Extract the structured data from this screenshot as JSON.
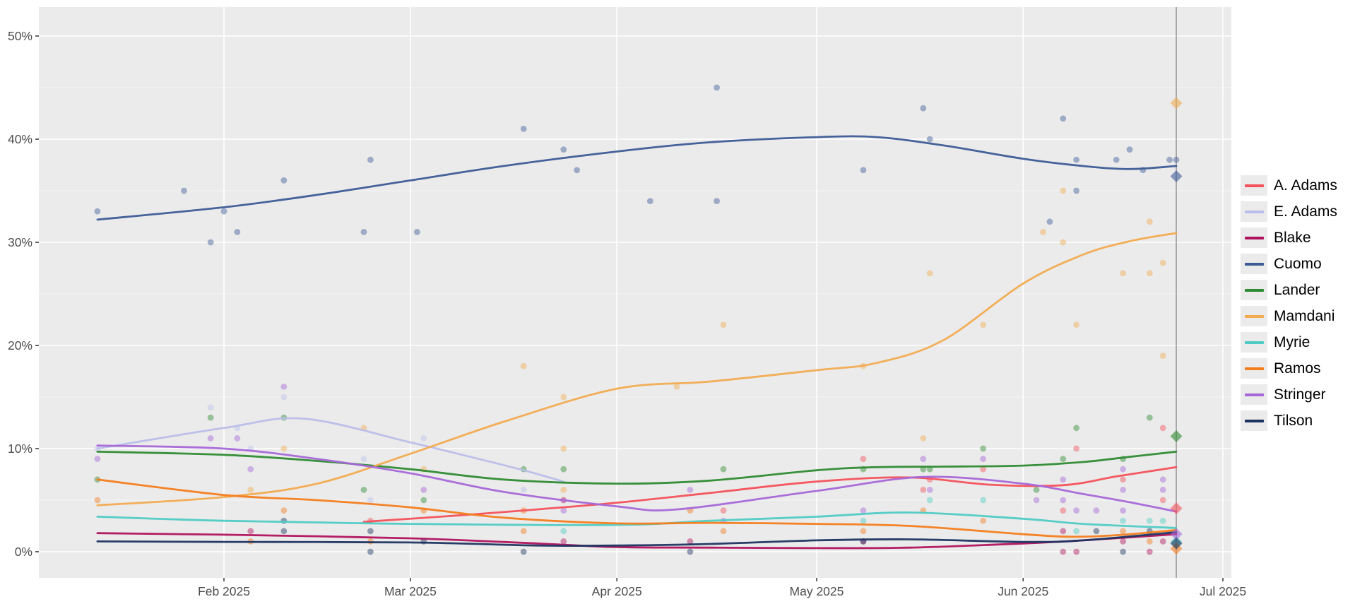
{
  "chart_data": {
    "type": "scatter",
    "subtype": "polls-with-loess-trend-lines",
    "title": "",
    "xlabel": "",
    "ylabel": "",
    "x_axis": {
      "unit": "date",
      "tick_labels": [
        "Feb 2025",
        "Mar 2025",
        "Apr 2025",
        "May 2025",
        "Jun 2025",
        "Jul 2025"
      ],
      "tick_days_of_year_2025": [
        32,
        60,
        91,
        121,
        152,
        182
      ],
      "visible_range_days": [
        4,
        183
      ]
    },
    "y_axis": {
      "unit": "percent",
      "tick_labels": [
        "0%",
        "10%",
        "20%",
        "30%",
        "40%",
        "50%"
      ],
      "tick_values": [
        0,
        10,
        20,
        30,
        40,
        50
      ],
      "minor_gridlines": [
        5,
        15,
        25,
        35,
        45
      ],
      "visible_range": [
        -2.5,
        52.8
      ]
    },
    "grid": "on",
    "panel_background": "#ebebeb",
    "gridline_major_color": "#ffffff",
    "gridline_minor_color": "rgba(255,255,255,0.55)",
    "axis_text_color": "#4d4d4d",
    "election_day_line": {
      "day": 175,
      "date": "Jun 24 2025",
      "color": "#8f8f8f"
    },
    "legend_position": "right",
    "note": "days are day-of-year 2025; polls = faded dots; trend = smoothed line; result = diamond at election day",
    "candidates": [
      {
        "name": "A. Adams",
        "color": "#f4515a",
        "result_pct": 4.2,
        "trend": [
          [
            53,
            2.9
          ],
          [
            69,
            3.6
          ],
          [
            79,
            4.1
          ],
          [
            91,
            4.75
          ],
          [
            105,
            5.7
          ],
          [
            121,
            6.8
          ],
          [
            135,
            7.2
          ],
          [
            147,
            6.5
          ],
          [
            158,
            6.45
          ],
          [
            166,
            7.3
          ],
          [
            175,
            8.2
          ]
        ],
        "polls": [
          [
            54,
            3
          ],
          [
            107,
            4
          ],
          [
            128,
            9
          ],
          [
            137,
            6
          ],
          [
            138,
            7
          ],
          [
            146,
            8
          ],
          [
            158,
            4
          ],
          [
            160,
            10
          ],
          [
            167,
            7
          ],
          [
            173,
            12
          ],
          [
            173,
            5
          ]
        ]
      },
      {
        "name": "E. Adams",
        "color": "#bbbee9",
        "result_pct": null,
        "trend": [
          [
            13,
            10.0
          ],
          [
            32,
            12.0
          ],
          [
            44,
            12.9
          ],
          [
            60,
            10.6
          ],
          [
            69,
            9.2
          ],
          [
            77,
            7.9
          ],
          [
            83,
            6.8
          ]
        ],
        "polls": [
          [
            13,
            10
          ],
          [
            30,
            14
          ],
          [
            34,
            12
          ],
          [
            36,
            10
          ],
          [
            41,
            15
          ],
          [
            53,
            9
          ],
          [
            54,
            5
          ],
          [
            62,
            11
          ],
          [
            77,
            6
          ]
        ]
      },
      {
        "name": "Blake",
        "color": "#b0135e",
        "result_pct": null,
        "trend": [
          [
            13,
            1.8
          ],
          [
            32,
            1.65
          ],
          [
            60,
            1.3
          ],
          [
            79,
            0.8
          ],
          [
            91,
            0.45
          ],
          [
            105,
            0.4
          ],
          [
            121,
            0.35
          ],
          [
            135,
            0.4
          ],
          [
            152,
            0.8
          ],
          [
            161,
            1.1
          ],
          [
            175,
            1.7
          ]
        ],
        "polls": [
          [
            36,
            2
          ],
          [
            83,
            5
          ],
          [
            83,
            1
          ],
          [
            102,
            1
          ],
          [
            128,
            1
          ],
          [
            158,
            2
          ],
          [
            158,
            0
          ],
          [
            160,
            0
          ],
          [
            167,
            1
          ],
          [
            171,
            0
          ],
          [
            173,
            1
          ]
        ]
      },
      {
        "name": "Cuomo",
        "color": "#3d5b96",
        "result_pct": 36.4,
        "trend": [
          [
            13,
            32.2
          ],
          [
            32,
            33.4
          ],
          [
            46,
            34.6
          ],
          [
            60,
            36.0
          ],
          [
            74,
            37.4
          ],
          [
            91,
            38.8
          ],
          [
            105,
            39.7
          ],
          [
            121,
            40.2
          ],
          [
            130,
            40.2
          ],
          [
            140,
            39.4
          ],
          [
            152,
            38.1
          ],
          [
            161,
            37.4
          ],
          [
            168,
            37.1
          ],
          [
            175,
            37.4
          ]
        ],
        "polls": [
          [
            13,
            33
          ],
          [
            26,
            35
          ],
          [
            30,
            30
          ],
          [
            32,
            33
          ],
          [
            34,
            31
          ],
          [
            41,
            36
          ],
          [
            53,
            31
          ],
          [
            54,
            38
          ],
          [
            61,
            31
          ],
          [
            77,
            41
          ],
          [
            83,
            39
          ],
          [
            85,
            37
          ],
          [
            96,
            34
          ],
          [
            106,
            45
          ],
          [
            106,
            34
          ],
          [
            128,
            37
          ],
          [
            137,
            43
          ],
          [
            138,
            40
          ],
          [
            156,
            32
          ],
          [
            158,
            42
          ],
          [
            160,
            38
          ],
          [
            160,
            35
          ],
          [
            166,
            38
          ],
          [
            168,
            39
          ],
          [
            170,
            37
          ],
          [
            174,
            38
          ],
          [
            175,
            38
          ]
        ]
      },
      {
        "name": "Lander",
        "color": "#2e8b31",
        "result_pct": 11.2,
        "trend": [
          [
            13,
            9.7
          ],
          [
            32,
            9.4
          ],
          [
            46,
            8.8
          ],
          [
            60,
            8.0
          ],
          [
            74,
            7.0
          ],
          [
            91,
            6.6
          ],
          [
            105,
            6.9
          ],
          [
            121,
            7.9
          ],
          [
            130,
            8.2
          ],
          [
            140,
            8.25
          ],
          [
            152,
            8.35
          ],
          [
            161,
            8.7
          ],
          [
            168,
            9.2
          ],
          [
            175,
            9.7
          ]
        ],
        "polls": [
          [
            13,
            7
          ],
          [
            30,
            13
          ],
          [
            41,
            13
          ],
          [
            53,
            6
          ],
          [
            62,
            5
          ],
          [
            77,
            8
          ],
          [
            83,
            8
          ],
          [
            107,
            8
          ],
          [
            128,
            8
          ],
          [
            137,
            8
          ],
          [
            138,
            8
          ],
          [
            146,
            10
          ],
          [
            154,
            6
          ],
          [
            158,
            9
          ],
          [
            160,
            12
          ],
          [
            167,
            9
          ],
          [
            171,
            13
          ]
        ]
      },
      {
        "name": "Mamdani",
        "color": "#f2ab50",
        "result_pct": 43.5,
        "trend": [
          [
            13,
            4.5
          ],
          [
            32,
            5.3
          ],
          [
            46,
            6.6
          ],
          [
            60,
            9.5
          ],
          [
            74,
            12.6
          ],
          [
            91,
            15.8
          ],
          [
            105,
            16.5
          ],
          [
            121,
            17.6
          ],
          [
            130,
            18.3
          ],
          [
            140,
            20.5
          ],
          [
            152,
            26.0
          ],
          [
            161,
            28.8
          ],
          [
            168,
            30.1
          ],
          [
            175,
            30.9
          ]
        ],
        "polls": [
          [
            36,
            6
          ],
          [
            41,
            10
          ],
          [
            53,
            12
          ],
          [
            62,
            8
          ],
          [
            77,
            18
          ],
          [
            83,
            15
          ],
          [
            83,
            10
          ],
          [
            83,
            6
          ],
          [
            100,
            16
          ],
          [
            107,
            22
          ],
          [
            128,
            18
          ],
          [
            137,
            11
          ],
          [
            138,
            27
          ],
          [
            146,
            22
          ],
          [
            155,
            31
          ],
          [
            158,
            35
          ],
          [
            158,
            30
          ],
          [
            160,
            22
          ],
          [
            167,
            27
          ],
          [
            171,
            32
          ],
          [
            171,
            27
          ],
          [
            173,
            28
          ],
          [
            173,
            19
          ]
        ]
      },
      {
        "name": "Myrie",
        "color": "#4fcbc4",
        "result_pct": 0.95,
        "trend": [
          [
            13,
            3.4
          ],
          [
            32,
            3.0
          ],
          [
            60,
            2.7
          ],
          [
            91,
            2.6
          ],
          [
            105,
            3.0
          ],
          [
            121,
            3.4
          ],
          [
            135,
            3.8
          ],
          [
            152,
            3.2
          ],
          [
            161,
            2.7
          ],
          [
            175,
            2.3
          ]
        ],
        "polls": [
          [
            83,
            2
          ],
          [
            128,
            3
          ],
          [
            138,
            5
          ],
          [
            146,
            5
          ],
          [
            160,
            2
          ],
          [
            167,
            3
          ],
          [
            171,
            3
          ],
          [
            173,
            3
          ]
        ]
      },
      {
        "name": "Ramos",
        "color": "#f47d1e",
        "result_pct": 0.3,
        "trend": [
          [
            13,
            7.0
          ],
          [
            32,
            5.5
          ],
          [
            46,
            5.0
          ],
          [
            60,
            4.3
          ],
          [
            74,
            3.3
          ],
          [
            91,
            2.75
          ],
          [
            105,
            2.8
          ],
          [
            121,
            2.7
          ],
          [
            135,
            2.5
          ],
          [
            152,
            1.7
          ],
          [
            159,
            1.45
          ],
          [
            166,
            1.6
          ],
          [
            175,
            2.1
          ]
        ],
        "polls": [
          [
            13,
            5
          ],
          [
            36,
            1
          ],
          [
            41,
            4
          ],
          [
            54,
            1
          ],
          [
            62,
            4
          ],
          [
            77,
            4
          ],
          [
            77,
            2
          ],
          [
            102,
            4
          ],
          [
            107,
            2
          ],
          [
            128,
            2
          ],
          [
            137,
            4
          ],
          [
            146,
            3
          ],
          [
            167,
            2
          ],
          [
            171,
            1
          ]
        ]
      },
      {
        "name": "Stringer",
        "color": "#a667d8",
        "result_pct": 1.7,
        "trend": [
          [
            13,
            10.3
          ],
          [
            32,
            10.0
          ],
          [
            46,
            9.0
          ],
          [
            60,
            7.6
          ],
          [
            74,
            5.8
          ],
          [
            91,
            4.4
          ],
          [
            100,
            4.1
          ],
          [
            121,
            5.9
          ],
          [
            137,
            7.25
          ],
          [
            152,
            6.6
          ],
          [
            161,
            5.6
          ],
          [
            168,
            4.8
          ],
          [
            175,
            3.9
          ]
        ],
        "polls": [
          [
            13,
            9
          ],
          [
            30,
            11
          ],
          [
            34,
            11
          ],
          [
            36,
            8
          ],
          [
            41,
            16
          ],
          [
            62,
            6
          ],
          [
            83,
            4
          ],
          [
            102,
            6
          ],
          [
            107,
            3
          ],
          [
            128,
            4
          ],
          [
            137,
            9
          ],
          [
            138,
            6
          ],
          [
            146,
            9
          ],
          [
            154,
            5
          ],
          [
            158,
            7
          ],
          [
            158,
            5
          ],
          [
            160,
            4
          ],
          [
            163,
            4
          ],
          [
            167,
            8
          ],
          [
            167,
            6
          ],
          [
            167,
            4
          ],
          [
            173,
            7
          ],
          [
            173,
            6
          ]
        ]
      },
      {
        "name": "Tilson",
        "color": "#1d3461",
        "result_pct": 0.8,
        "trend": [
          [
            13,
            1.0
          ],
          [
            32,
            0.95
          ],
          [
            60,
            0.9
          ],
          [
            79,
            0.6
          ],
          [
            91,
            0.6
          ],
          [
            105,
            0.75
          ],
          [
            121,
            1.1
          ],
          [
            135,
            1.2
          ],
          [
            152,
            0.95
          ],
          [
            161,
            1.1
          ],
          [
            175,
            1.9
          ]
        ],
        "polls": [
          [
            41,
            3
          ],
          [
            41,
            2
          ],
          [
            54,
            2
          ],
          [
            54,
            0
          ],
          [
            62,
            1
          ],
          [
            77,
            0
          ],
          [
            102,
            0
          ],
          [
            128,
            1
          ],
          [
            163,
            2
          ],
          [
            167,
            0
          ],
          [
            171,
            2
          ]
        ]
      }
    ]
  }
}
